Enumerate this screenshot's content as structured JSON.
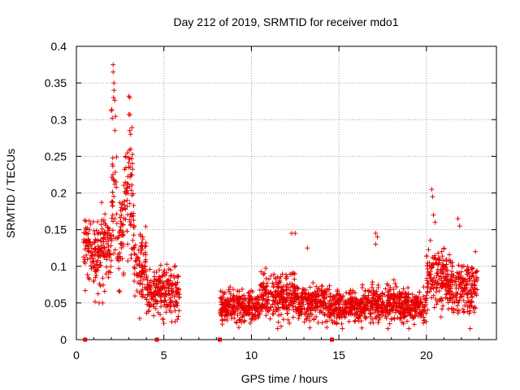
{
  "chart_data": {
    "type": "scatter",
    "title": "Day 212 of 2019, SRMTID for receiver mdo1",
    "xlabel": "GPS time / hours",
    "ylabel": "SRMTID / TECUs",
    "xlim": [
      0,
      24
    ],
    "ylim": [
      0,
      0.4
    ],
    "grid": true,
    "x_ticks": [
      0,
      5,
      10,
      15,
      20
    ],
    "y_ticks": [
      0,
      0.05,
      0.1,
      0.15,
      0.2,
      0.25,
      0.3,
      0.35,
      0.4
    ],
    "x_tick_labels": [
      "0",
      "5",
      "10",
      "15",
      "20"
    ],
    "y_tick_labels": [
      "0",
      "0.05",
      "0.1",
      "0.15",
      "0.2",
      "0.25",
      "0.3",
      "0.35",
      "0.4"
    ],
    "marker": "+",
    "series_color": "#e60000",
    "point_count": 2400,
    "seed": 212,
    "segments": [
      {
        "x_start": 0.4,
        "x_end": 1.3,
        "base": 0.12,
        "spread": 0.035
      },
      {
        "x_start": 1.3,
        "x_end": 2.0,
        "base": 0.13,
        "spread": 0.04
      },
      {
        "x_start": 2.0,
        "x_end": 2.3,
        "base": 0.2,
        "spread": 0.09
      },
      {
        "x_start": 2.3,
        "x_end": 2.7,
        "base": 0.14,
        "spread": 0.05
      },
      {
        "x_start": 2.7,
        "x_end": 3.3,
        "base": 0.19,
        "spread": 0.08
      },
      {
        "x_start": 3.3,
        "x_end": 4.0,
        "base": 0.1,
        "spread": 0.04
      },
      {
        "x_start": 4.0,
        "x_end": 4.7,
        "base": 0.065,
        "spread": 0.02
      },
      {
        "x_start": 4.7,
        "x_end": 5.9,
        "base": 0.065,
        "spread": 0.025
      },
      {
        "x_start": 8.2,
        "x_end": 10.5,
        "base": 0.045,
        "spread": 0.018
      },
      {
        "x_start": 10.5,
        "x_end": 12.5,
        "base": 0.06,
        "spread": 0.025
      },
      {
        "x_start": 12.5,
        "x_end": 14.5,
        "base": 0.05,
        "spread": 0.02
      },
      {
        "x_start": 14.5,
        "x_end": 16.5,
        "base": 0.045,
        "spread": 0.018
      },
      {
        "x_start": 16.5,
        "x_end": 18.5,
        "base": 0.05,
        "spread": 0.02
      },
      {
        "x_start": 18.5,
        "x_end": 20.0,
        "base": 0.045,
        "spread": 0.018
      },
      {
        "x_start": 20.0,
        "x_end": 21.2,
        "base": 0.085,
        "spread": 0.035
      },
      {
        "x_start": 21.2,
        "x_end": 22.9,
        "base": 0.07,
        "spread": 0.03
      }
    ],
    "spikes": [
      {
        "x": 2.1,
        "y": 0.375
      },
      {
        "x": 2.1,
        "y": 0.365
      },
      {
        "x": 2.15,
        "y": 0.35
      },
      {
        "x": 2.15,
        "y": 0.34
      },
      {
        "x": 2.12,
        "y": 0.33
      },
      {
        "x": 2.05,
        "y": 0.302
      },
      {
        "x": 3.0,
        "y": 0.332
      },
      {
        "x": 3.05,
        "y": 0.33
      },
      {
        "x": 3.0,
        "y": 0.307
      },
      {
        "x": 3.05,
        "y": 0.285
      },
      {
        "x": 3.1,
        "y": 0.28
      },
      {
        "x": 3.1,
        "y": 0.26
      },
      {
        "x": 2.8,
        "y": 0.25
      },
      {
        "x": 3.2,
        "y": 0.24
      },
      {
        "x": 3.0,
        "y": 0.235
      },
      {
        "x": 1.3,
        "y": 0.05
      },
      {
        "x": 1.5,
        "y": 0.05
      },
      {
        "x": 12.3,
        "y": 0.145
      },
      {
        "x": 12.5,
        "y": 0.145
      },
      {
        "x": 13.2,
        "y": 0.125
      },
      {
        "x": 17.1,
        "y": 0.145
      },
      {
        "x": 17.2,
        "y": 0.14
      },
      {
        "x": 17.1,
        "y": 0.13
      },
      {
        "x": 20.3,
        "y": 0.205
      },
      {
        "x": 20.35,
        "y": 0.195
      },
      {
        "x": 20.4,
        "y": 0.17
      },
      {
        "x": 20.5,
        "y": 0.16
      },
      {
        "x": 21.8,
        "y": 0.165
      },
      {
        "x": 21.9,
        "y": 0.155
      },
      {
        "x": 22.8,
        "y": 0.12
      },
      {
        "x": 22.5,
        "y": 0.015
      },
      {
        "x": 11.5,
        "y": 0.015
      },
      {
        "x": 15.2,
        "y": 0.015
      },
      {
        "x": 19.0,
        "y": 0.015
      },
      {
        "x": 17.8,
        "y": 0.015
      }
    ],
    "zero_points": [
      0.5,
      4.6,
      8.2,
      14.6
    ]
  }
}
